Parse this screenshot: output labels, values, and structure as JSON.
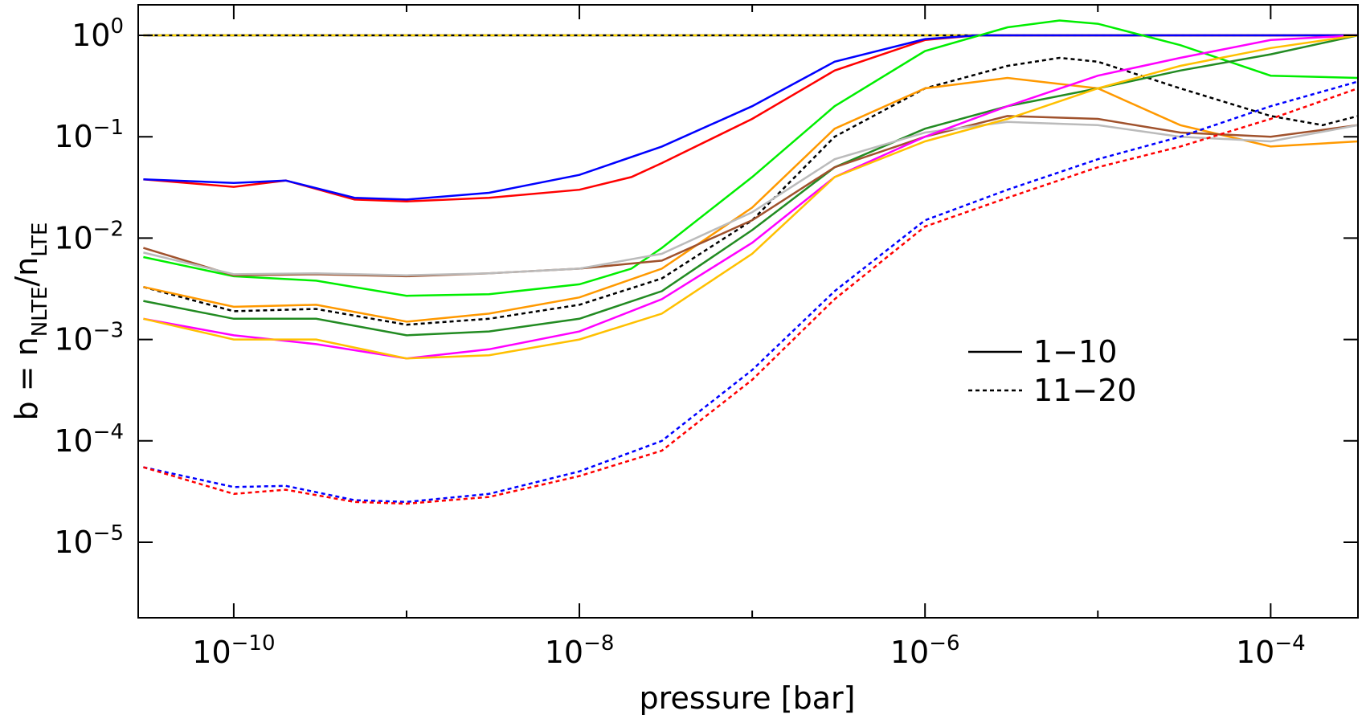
{
  "chart_data": {
    "type": "line",
    "xlabel": "pressure [bar]",
    "ylabel": {
      "base": "b = n",
      "sub1": "NLTE",
      "mid": "/n",
      "sub2": "LTE"
    },
    "x_scale": "log",
    "y_scale": "log",
    "xlim": [
      2.8e-11,
      0.00032
    ],
    "ylim": [
      1.8e-06,
      2.0
    ],
    "x_ticks": [
      {
        "value": 1e-10,
        "base": "10",
        "exp": "−10"
      },
      {
        "value": 1e-08,
        "base": "10",
        "exp": "−8"
      },
      {
        "value": 1e-06,
        "base": "10",
        "exp": "−6"
      },
      {
        "value": 0.0001,
        "base": "10",
        "exp": "−4"
      }
    ],
    "y_ticks": [
      {
        "value": 1,
        "base": "10",
        "exp": "0"
      },
      {
        "value": 0.1,
        "base": "10",
        "exp": "−1"
      },
      {
        "value": 0.01,
        "base": "10",
        "exp": "−2"
      },
      {
        "value": 0.001,
        "base": "10",
        "exp": "−3"
      },
      {
        "value": 0.0001,
        "base": "10",
        "exp": "−4"
      },
      {
        "value": 1e-05,
        "base": "10",
        "exp": "−5"
      }
    ],
    "legend": {
      "placement": "right-center",
      "entries": [
        {
          "label": "1−10",
          "style": "solid"
        },
        {
          "label": "11−20",
          "style": "dashed"
        }
      ]
    },
    "series": [
      {
        "color": "#000000",
        "style": "solid",
        "points": [
          [
            3e-11,
            1
          ],
          [
            0.00032,
            1
          ]
        ]
      },
      {
        "color": "#ffd700",
        "style": "dashed",
        "points": [
          [
            3e-11,
            1
          ],
          [
            0.00032,
            1
          ]
        ]
      },
      {
        "color": "#ff0000",
        "style": "solid",
        "points": [
          [
            3e-11,
            0.038
          ],
          [
            1e-10,
            0.032
          ],
          [
            2e-10,
            0.037
          ],
          [
            5e-10,
            0.024
          ],
          [
            1e-09,
            0.023
          ],
          [
            3e-09,
            0.025
          ],
          [
            1e-08,
            0.03
          ],
          [
            2e-08,
            0.04
          ],
          [
            3e-08,
            0.055
          ],
          [
            1e-07,
            0.15
          ],
          [
            3e-07,
            0.45
          ],
          [
            1e-06,
            0.9
          ],
          [
            2e-06,
            1
          ],
          [
            1e-05,
            1
          ],
          [
            0.0001,
            1
          ],
          [
            0.00032,
            1
          ]
        ]
      },
      {
        "color": "#0000ff",
        "style": "solid",
        "points": [
          [
            3e-11,
            0.038
          ],
          [
            1e-10,
            0.035
          ],
          [
            2e-10,
            0.037
          ],
          [
            5e-10,
            0.025
          ],
          [
            1e-09,
            0.024
          ],
          [
            3e-09,
            0.028
          ],
          [
            1e-08,
            0.042
          ],
          [
            3e-08,
            0.08
          ],
          [
            1e-07,
            0.2
          ],
          [
            3e-07,
            0.55
          ],
          [
            1e-06,
            0.92
          ],
          [
            2e-06,
            1
          ],
          [
            1e-05,
            1
          ],
          [
            0.0001,
            1
          ],
          [
            0.00032,
            1
          ]
        ]
      },
      {
        "color": "#00ee00",
        "style": "solid",
        "points": [
          [
            3e-11,
            0.0065
          ],
          [
            1e-10,
            0.0042
          ],
          [
            3e-10,
            0.0038
          ],
          [
            1e-09,
            0.0027
          ],
          [
            3e-09,
            0.0028
          ],
          [
            1e-08,
            0.0035
          ],
          [
            2e-08,
            0.005
          ],
          [
            3e-08,
            0.008
          ],
          [
            1e-07,
            0.04
          ],
          [
            3e-07,
            0.2
          ],
          [
            1e-06,
            0.7
          ],
          [
            3e-06,
            1.2
          ],
          [
            6e-06,
            1.4
          ],
          [
            1e-05,
            1.3
          ],
          [
            3e-05,
            0.8
          ],
          [
            0.0001,
            0.4
          ],
          [
            0.00032,
            0.38
          ]
        ]
      },
      {
        "color": "#000000",
        "style": "dashed",
        "points": [
          [
            3e-11,
            0.0033
          ],
          [
            1e-10,
            0.0019
          ],
          [
            3e-10,
            0.002
          ],
          [
            1e-09,
            0.0014
          ],
          [
            3e-09,
            0.0016
          ],
          [
            1e-08,
            0.0022
          ],
          [
            3e-08,
            0.004
          ],
          [
            1e-07,
            0.015
          ],
          [
            3e-07,
            0.1
          ],
          [
            1e-06,
            0.3
          ],
          [
            3e-06,
            0.5
          ],
          [
            6e-06,
            0.6
          ],
          [
            1e-05,
            0.55
          ],
          [
            3e-05,
            0.3
          ],
          [
            0.0001,
            0.16
          ],
          [
            0.0002,
            0.13
          ],
          [
            0.00032,
            0.16
          ]
        ]
      },
      {
        "color": "#ff9900",
        "style": "solid",
        "points": [
          [
            3e-11,
            0.0033
          ],
          [
            1e-10,
            0.0021
          ],
          [
            3e-10,
            0.0022
          ],
          [
            1e-09,
            0.0015
          ],
          [
            3e-09,
            0.0018
          ],
          [
            1e-08,
            0.0026
          ],
          [
            3e-08,
            0.005
          ],
          [
            1e-07,
            0.02
          ],
          [
            3e-07,
            0.12
          ],
          [
            1e-06,
            0.3
          ],
          [
            3e-06,
            0.38
          ],
          [
            1e-05,
            0.3
          ],
          [
            3e-05,
            0.13
          ],
          [
            0.0001,
            0.08
          ],
          [
            0.00032,
            0.09
          ]
        ]
      },
      {
        "color": "#228b22",
        "style": "solid",
        "points": [
          [
            3e-11,
            0.0024
          ],
          [
            1e-10,
            0.0016
          ],
          [
            3e-10,
            0.0016
          ],
          [
            1e-09,
            0.0011
          ],
          [
            3e-09,
            0.0012
          ],
          [
            1e-08,
            0.0016
          ],
          [
            3e-08,
            0.003
          ],
          [
            1e-07,
            0.012
          ],
          [
            3e-07,
            0.05
          ],
          [
            1e-06,
            0.12
          ],
          [
            3e-06,
            0.2
          ],
          [
            1e-05,
            0.3
          ],
          [
            3e-05,
            0.45
          ],
          [
            0.0001,
            0.65
          ],
          [
            0.00032,
            1
          ]
        ]
      },
      {
        "color": "#a0522d",
        "style": "solid",
        "points": [
          [
            3e-11,
            0.008
          ],
          [
            1e-10,
            0.0043
          ],
          [
            3e-10,
            0.0044
          ],
          [
            1e-09,
            0.0042
          ],
          [
            3e-09,
            0.0045
          ],
          [
            1e-08,
            0.005
          ],
          [
            3e-08,
            0.006
          ],
          [
            1e-07,
            0.015
          ],
          [
            3e-07,
            0.05
          ],
          [
            1e-06,
            0.1
          ],
          [
            3e-06,
            0.16
          ],
          [
            1e-05,
            0.15
          ],
          [
            3e-05,
            0.11
          ],
          [
            0.0001,
            0.1
          ],
          [
            0.00032,
            0.13
          ]
        ]
      },
      {
        "color": "#bbbbbb",
        "style": "solid",
        "points": [
          [
            3e-11,
            0.0072
          ],
          [
            1e-10,
            0.0044
          ],
          [
            3e-10,
            0.0045
          ],
          [
            1e-09,
            0.0043
          ],
          [
            3e-09,
            0.0045
          ],
          [
            1e-08,
            0.005
          ],
          [
            3e-08,
            0.007
          ],
          [
            1e-07,
            0.018
          ],
          [
            3e-07,
            0.06
          ],
          [
            1e-06,
            0.11
          ],
          [
            3e-06,
            0.14
          ],
          [
            1e-05,
            0.13
          ],
          [
            3e-05,
            0.1
          ],
          [
            0.0001,
            0.09
          ],
          [
            0.00032,
            0.13
          ]
        ]
      },
      {
        "color": "#ff00ff",
        "style": "solid",
        "points": [
          [
            3e-11,
            0.0016
          ],
          [
            1e-10,
            0.0011
          ],
          [
            3e-10,
            0.0009
          ],
          [
            1e-09,
            0.00065
          ],
          [
            3e-09,
            0.0008
          ],
          [
            1e-08,
            0.0012
          ],
          [
            3e-08,
            0.0025
          ],
          [
            1e-07,
            0.009
          ],
          [
            3e-07,
            0.04
          ],
          [
            1e-06,
            0.1
          ],
          [
            3e-06,
            0.2
          ],
          [
            1e-05,
            0.4
          ],
          [
            3e-05,
            0.6
          ],
          [
            0.0001,
            0.9
          ],
          [
            0.00032,
            1
          ]
        ]
      },
      {
        "color": "#ffc000",
        "style": "solid",
        "points": [
          [
            3e-11,
            0.0016
          ],
          [
            1e-10,
            0.001
          ],
          [
            3e-10,
            0.001
          ],
          [
            1e-09,
            0.00065
          ],
          [
            3e-09,
            0.0007
          ],
          [
            1e-08,
            0.001
          ],
          [
            3e-08,
            0.0018
          ],
          [
            1e-07,
            0.007
          ],
          [
            3e-07,
            0.04
          ],
          [
            1e-06,
            0.09
          ],
          [
            3e-06,
            0.15
          ],
          [
            1e-05,
            0.3
          ],
          [
            3e-05,
            0.5
          ],
          [
            0.0001,
            0.75
          ],
          [
            0.00032,
            1
          ]
        ]
      },
      {
        "color": "#0000ff",
        "style": "dashed",
        "points": [
          [
            3e-11,
            5.5e-05
          ],
          [
            1e-10,
            3.5e-05
          ],
          [
            2e-10,
            3.6e-05
          ],
          [
            5e-10,
            2.6e-05
          ],
          [
            1e-09,
            2.5e-05
          ],
          [
            3e-09,
            3e-05
          ],
          [
            1e-08,
            5e-05
          ],
          [
            3e-08,
            0.0001
          ],
          [
            1e-07,
            0.0005
          ],
          [
            3e-07,
            0.003
          ],
          [
            1e-06,
            0.015
          ],
          [
            3e-06,
            0.03
          ],
          [
            1e-05,
            0.06
          ],
          [
            3e-05,
            0.1
          ],
          [
            0.0001,
            0.2
          ],
          [
            0.00032,
            0.35
          ]
        ]
      },
      {
        "color": "#ff0000",
        "style": "dashed",
        "points": [
          [
            3e-11,
            5.5e-05
          ],
          [
            1e-10,
            3e-05
          ],
          [
            2e-10,
            3.3e-05
          ],
          [
            5e-10,
            2.5e-05
          ],
          [
            1e-09,
            2.4e-05
          ],
          [
            3e-09,
            2.8e-05
          ],
          [
            1e-08,
            4.5e-05
          ],
          [
            3e-08,
            8e-05
          ],
          [
            1e-07,
            0.0004
          ],
          [
            3e-07,
            0.0025
          ],
          [
            1e-06,
            0.013
          ],
          [
            3e-06,
            0.025
          ],
          [
            1e-05,
            0.05
          ],
          [
            3e-05,
            0.08
          ],
          [
            0.0001,
            0.15
          ],
          [
            0.00032,
            0.3
          ]
        ]
      }
    ]
  }
}
